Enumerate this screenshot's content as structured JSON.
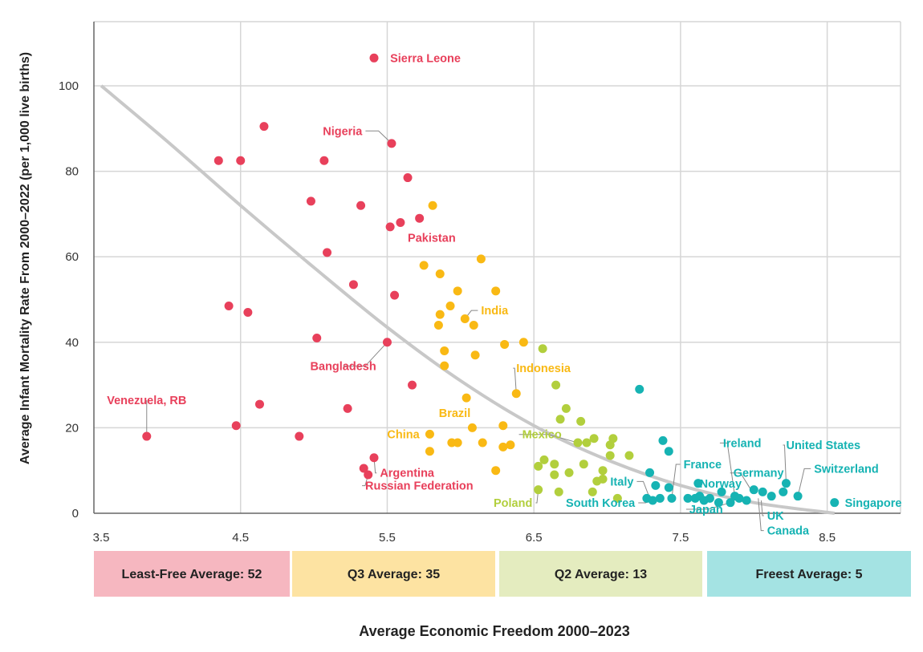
{
  "chart_data": {
    "type": "scatter",
    "title": "",
    "xlabel": "Average Economic Freedom 2000–2023",
    "ylabel": "Average Infant Mortality Rate From 2000–2022 (per 1,000 live births)",
    "xlim": [
      3.5,
      9.0
    ],
    "ylim": [
      0,
      115
    ],
    "x_ticks": [
      3.5,
      4.5,
      5.5,
      6.5,
      7.5,
      8.5
    ],
    "x_tick_labels": [
      "3.5",
      "4.5",
      "5.5",
      "6.5",
      "7.5",
      "8.5"
    ],
    "y_ticks": [
      0,
      20,
      40,
      60,
      80,
      100
    ],
    "y_tick_labels": [
      "0",
      "20",
      "40",
      "60",
      "80",
      "100"
    ],
    "grid": true,
    "colors": {
      "least_free": "#e8405b",
      "q3": "#f9b914",
      "q2": "#b2cf3d",
      "freest": "#16b3b3",
      "trend": "#c8c8c8",
      "grid": "#d6d6d6",
      "label_line": "#888888"
    },
    "trend_line": {
      "x": [
        3.55,
        4.0,
        4.5,
        5.0,
        5.5,
        6.0,
        6.5,
        7.0,
        7.5,
        8.0,
        8.55
      ],
      "y": [
        100,
        87,
        72,
        57.5,
        43.5,
        31,
        20.5,
        12.5,
        6.5,
        2.5,
        0
      ]
    },
    "series": [
      {
        "key": "least_free",
        "points": [
          [
            3.86,
            18
          ],
          [
            4.35,
            82.5
          ],
          [
            4.42,
            48.5
          ],
          [
            4.47,
            20.5
          ],
          [
            4.5,
            82.5
          ],
          [
            4.55,
            47
          ],
          [
            4.63,
            25.5
          ],
          [
            4.66,
            90.5
          ],
          [
            4.9,
            18
          ],
          [
            4.98,
            73
          ],
          [
            5.02,
            41
          ],
          [
            5.07,
            82.5
          ],
          [
            5.09,
            61
          ],
          [
            5.23,
            24.5
          ],
          [
            5.27,
            53.5
          ],
          [
            5.32,
            72
          ],
          [
            5.34,
            10.5
          ],
          [
            5.37,
            9
          ],
          [
            5.41,
            13
          ],
          [
            5.41,
            106.5
          ],
          [
            5.5,
            40
          ],
          [
            5.52,
            67
          ],
          [
            5.53,
            86.5
          ],
          [
            5.55,
            51
          ],
          [
            5.59,
            68
          ],
          [
            5.64,
            78.5
          ],
          [
            5.67,
            30
          ],
          [
            5.72,
            69
          ]
        ]
      },
      {
        "key": "q3",
        "points": [
          [
            5.75,
            58
          ],
          [
            5.79,
            18.5
          ],
          [
            5.79,
            14.5
          ],
          [
            5.81,
            72
          ],
          [
            5.85,
            44
          ],
          [
            5.86,
            56
          ],
          [
            5.86,
            46.5
          ],
          [
            5.89,
            38
          ],
          [
            5.89,
            34.5
          ],
          [
            5.93,
            48.5
          ],
          [
            5.94,
            16.5
          ],
          [
            5.98,
            16.5
          ],
          [
            5.98,
            52
          ],
          [
            6.03,
            45.5
          ],
          [
            6.04,
            27
          ],
          [
            6.08,
            20
          ],
          [
            6.09,
            44
          ],
          [
            6.1,
            37
          ],
          [
            6.14,
            59.5
          ],
          [
            6.15,
            16.5
          ],
          [
            6.24,
            52
          ],
          [
            6.24,
            10
          ],
          [
            6.29,
            15.5
          ],
          [
            6.29,
            20.5
          ],
          [
            6.3,
            39.5
          ],
          [
            6.34,
            16
          ],
          [
            6.38,
            28
          ],
          [
            6.43,
            40
          ]
        ]
      },
      {
        "key": "q2",
        "points": [
          [
            6.53,
            5.5
          ],
          [
            6.53,
            11
          ],
          [
            6.56,
            38.5
          ],
          [
            6.57,
            12.5
          ],
          [
            6.64,
            9
          ],
          [
            6.64,
            11.5
          ],
          [
            6.65,
            30
          ],
          [
            6.67,
            5
          ],
          [
            6.68,
            22
          ],
          [
            6.72,
            24.5
          ],
          [
            6.74,
            9.5
          ],
          [
            6.8,
            16.5
          ],
          [
            6.82,
            21.5
          ],
          [
            6.84,
            11.5
          ],
          [
            6.86,
            16.5
          ],
          [
            6.9,
            5
          ],
          [
            6.91,
            17.5
          ],
          [
            6.93,
            7.5
          ],
          [
            6.97,
            10
          ],
          [
            6.97,
            8
          ],
          [
            7.02,
            13.5
          ],
          [
            7.02,
            16
          ],
          [
            7.04,
            17.5
          ],
          [
            7.07,
            3.5
          ],
          [
            7.15,
            13.5
          ]
        ]
      },
      {
        "key": "freest",
        "points": [
          [
            7.22,
            29
          ],
          [
            7.27,
            3.5
          ],
          [
            7.29,
            9.5
          ],
          [
            7.31,
            3
          ],
          [
            7.33,
            6.5
          ],
          [
            7.36,
            3.5
          ],
          [
            7.38,
            17
          ],
          [
            7.42,
            6
          ],
          [
            7.42,
            14.5
          ],
          [
            7.44,
            3.5
          ],
          [
            7.55,
            3.5
          ],
          [
            7.6,
            3.5
          ],
          [
            7.62,
            7
          ],
          [
            7.63,
            4
          ],
          [
            7.66,
            3
          ],
          [
            7.7,
            3.5
          ],
          [
            7.76,
            2.5
          ],
          [
            7.78,
            5
          ],
          [
            7.84,
            2.5
          ],
          [
            7.87,
            4
          ],
          [
            7.9,
            3.5
          ],
          [
            7.95,
            3
          ],
          [
            8.0,
            5.5
          ],
          [
            8.06,
            5
          ],
          [
            8.12,
            4
          ],
          [
            8.2,
            5
          ],
          [
            8.22,
            7
          ],
          [
            8.3,
            4
          ],
          [
            8.55,
            2.5
          ]
        ]
      }
    ],
    "labels": [
      {
        "text": "Sierra Leone",
        "series": "least_free",
        "at": [
          5.52,
          105.5
        ],
        "anchor": "start"
      },
      {
        "text": "Nigeria",
        "series": "least_free",
        "at": [
          5.33,
          88.5
        ],
        "anchor": "end",
        "line_to": [
          5.53,
          86.5
        ]
      },
      {
        "text": "Pakistan",
        "series": "least_free",
        "at": [
          5.64,
          63.5
        ],
        "anchor": "start"
      },
      {
        "text": "Bangladesh",
        "series": "least_free",
        "at": [
          5.2,
          33.5
        ],
        "anchor": "middle",
        "line_to": [
          5.5,
          40
        ]
      },
      {
        "text": "Venezuela, RB",
        "series": "least_free",
        "at": [
          3.86,
          25.5
        ],
        "anchor": "middle",
        "line_to": [
          3.86,
          18
        ]
      },
      {
        "text": "Argentina",
        "series": "least_free",
        "at": [
          5.45,
          8.5
        ],
        "anchor": "start",
        "line_to": [
          5.41,
          13
        ]
      },
      {
        "text": "Russian Federation",
        "series": "least_free",
        "at": [
          5.35,
          5.5
        ],
        "anchor": "start",
        "line_to": [
          5.37,
          9
        ]
      },
      {
        "text": "India",
        "series": "q3",
        "at": [
          6.14,
          46.5
        ],
        "anchor": "start",
        "line_to": [
          6.03,
          45.5
        ]
      },
      {
        "text": "Indonesia",
        "series": "q3",
        "at": [
          6.38,
          33
        ],
        "anchor": "start",
        "line_to": [
          6.38,
          28
        ]
      },
      {
        "text": "Brazil",
        "series": "q3",
        "at": [
          5.96,
          22.5
        ],
        "anchor": "middle"
      },
      {
        "text": "China",
        "series": "q3",
        "at": [
          5.72,
          17.5
        ],
        "anchor": "end"
      },
      {
        "text": "Mexico",
        "series": "q2",
        "at": [
          6.42,
          17.5
        ],
        "anchor": "start",
        "line_to": [
          6.8,
          16.5
        ]
      },
      {
        "text": "Poland",
        "series": "q2",
        "at": [
          6.49,
          1.5
        ],
        "anchor": "end",
        "line_to": [
          6.53,
          5.5
        ]
      },
      {
        "text": "Italy",
        "series": "freest",
        "at": [
          7.18,
          6.5
        ],
        "anchor": "end",
        "line_to": [
          7.29,
          3.5
        ]
      },
      {
        "text": "South Korea",
        "series": "freest",
        "at": [
          7.19,
          1.5
        ],
        "anchor": "end",
        "line_to": [
          7.31,
          3
        ]
      },
      {
        "text": "France",
        "series": "freest",
        "at": [
          7.52,
          10.5
        ],
        "anchor": "start",
        "line_to": [
          7.44,
          3.5
        ]
      },
      {
        "text": "Ireland",
        "series": "freest",
        "at": [
          7.79,
          15.5
        ],
        "anchor": "start",
        "line_to": [
          7.87,
          4
        ]
      },
      {
        "text": "Norway",
        "series": "freest",
        "at": [
          7.63,
          6
        ],
        "anchor": "start"
      },
      {
        "text": "Germany",
        "series": "freest",
        "at": [
          7.86,
          8.5
        ],
        "anchor": "start",
        "line_to": [
          7.98,
          5.5
        ]
      },
      {
        "text": "Japan",
        "series": "freest",
        "at": [
          7.56,
          0
        ],
        "anchor": "start",
        "line_to": [
          7.84,
          2.5
        ]
      },
      {
        "text": "UK",
        "series": "freest",
        "at": [
          8.09,
          -1.5
        ],
        "anchor": "start",
        "line_to": [
          8.05,
          3
        ]
      },
      {
        "text": "Canada",
        "series": "freest",
        "at": [
          8.09,
          -5
        ],
        "anchor": "start",
        "line_to": [
          8.03,
          3.5
        ]
      },
      {
        "text": "United States",
        "series": "freest",
        "at": [
          8.22,
          15
        ],
        "anchor": "start",
        "line_to": [
          8.22,
          7
        ]
      },
      {
        "text": "Switzerland",
        "series": "freest",
        "at": [
          8.41,
          9.5
        ],
        "anchor": "start",
        "line_to": [
          8.3,
          4
        ]
      },
      {
        "text": "Singapore",
        "series": "freest",
        "at": [
          8.62,
          1.5
        ],
        "anchor": "start"
      }
    ],
    "quartile_bands": [
      {
        "label": "Least-Free Average: 52",
        "bg": "#f6b7c0"
      },
      {
        "label": "Q3 Average: 35",
        "bg": "#fde3a2"
      },
      {
        "label": "Q2 Average: 13",
        "bg": "#e4ecbf"
      },
      {
        "label": "Freest Average: 5",
        "bg": "#a4e3e3"
      }
    ]
  }
}
